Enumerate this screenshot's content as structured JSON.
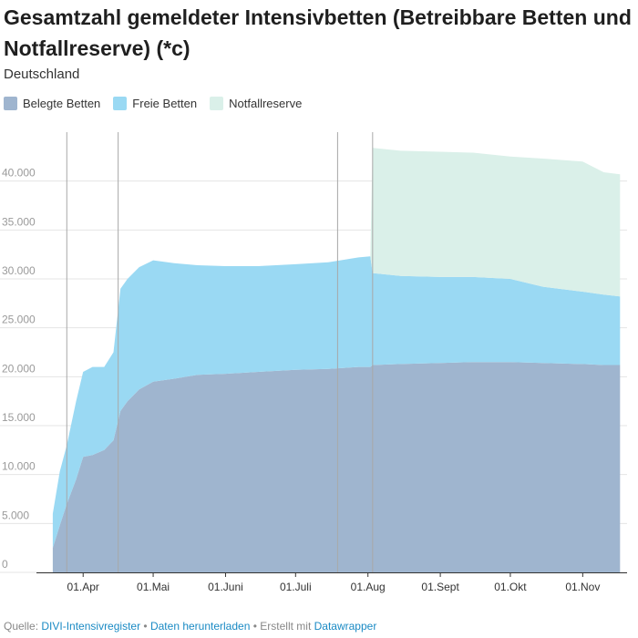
{
  "title": "Gesamtzahl gemeldeter Intensivbetten (Betreibbare Betten und Notfallreserve) (*c)",
  "subtitle": "Deutschland",
  "legend": [
    {
      "label": "Belegte Betten",
      "color": "#9fb5cf"
    },
    {
      "label": "Freie Betten",
      "color": "#9ad9f3"
    },
    {
      "label": "Notfallreserve",
      "color": "#daf0e9"
    }
  ],
  "footer": {
    "prefix": "Quelle:",
    "source": "DIVI-Intensivregister",
    "sep1": "•",
    "download": "Daten herunterladen",
    "sep2": "• Erstellt mit",
    "tool": "Datawrapper"
  },
  "chart_data": {
    "type": "area",
    "stacked": true,
    "x_is_date": true,
    "ylim": [
      0,
      45000
    ],
    "yticks": [
      0,
      5000,
      10000,
      15000,
      20000,
      25000,
      30000,
      35000,
      40000
    ],
    "ytick_labels": [
      "0",
      "5.000",
      "10.000",
      "15.000",
      "20.000",
      "25.000",
      "30.000",
      "35.000",
      "40.000"
    ],
    "xticks": [
      {
        "date": "2020-04-01",
        "label": "01.Apr"
      },
      {
        "date": "2020-05-01",
        "label": "01.Mai"
      },
      {
        "date": "2020-06-01",
        "label": "01.Juni"
      },
      {
        "date": "2020-07-01",
        "label": "01.Juli"
      },
      {
        "date": "2020-08-01",
        "label": "01.Aug"
      },
      {
        "date": "2020-09-01",
        "label": "01.Sept"
      },
      {
        "date": "2020-10-01",
        "label": "01.Okt"
      },
      {
        "date": "2020-11-01",
        "label": "01.Nov"
      }
    ],
    "x_range": [
      "2020-03-12",
      "2020-11-20"
    ],
    "highlight_dates": [
      "2020-03-25",
      "2020-04-16",
      "2020-07-19",
      "2020-08-03"
    ],
    "x": [
      "2020-03-19",
      "2020-03-22",
      "2020-03-25",
      "2020-03-29",
      "2020-04-01",
      "2020-04-05",
      "2020-04-10",
      "2020-04-14",
      "2020-04-17",
      "2020-04-20",
      "2020-04-25",
      "2020-05-01",
      "2020-05-10",
      "2020-05-20",
      "2020-06-01",
      "2020-06-15",
      "2020-07-01",
      "2020-07-15",
      "2020-07-28",
      "2020-08-02",
      "2020-08-03",
      "2020-08-15",
      "2020-09-01",
      "2020-09-15",
      "2020-10-01",
      "2020-10-15",
      "2020-11-01",
      "2020-11-10",
      "2020-11-17"
    ],
    "series": [
      {
        "name": "Belegte Betten",
        "color": "#9fb5cf",
        "values": [
          2500,
          4800,
          7000,
          9500,
          11800,
          12000,
          12500,
          13500,
          16500,
          17500,
          18700,
          19500,
          19800,
          20200,
          20300,
          20500,
          20700,
          20800,
          21000,
          21000,
          21200,
          21300,
          21400,
          21500,
          21500,
          21400,
          21300,
          21200,
          21200
        ]
      },
      {
        "name": "Freie Betten",
        "color": "#9ad9f3",
        "values": [
          3500,
          5500,
          6000,
          8000,
          8700,
          9000,
          8500,
          9000,
          12500,
          12500,
          12500,
          12400,
          11800,
          11200,
          11000,
          10800,
          10800,
          10900,
          11200,
          11300,
          9400,
          9000,
          8800,
          8700,
          8500,
          7800,
          7400,
          7200,
          7000
        ]
      },
      {
        "name": "Notfallreserve",
        "color": "#daf0e9",
        "values": [
          0,
          0,
          0,
          0,
          0,
          0,
          0,
          0,
          0,
          0,
          0,
          0,
          0,
          0,
          0,
          0,
          0,
          0,
          0,
          0,
          12800,
          12800,
          12800,
          12700,
          12500,
          13100,
          13300,
          12500,
          12500
        ]
      }
    ]
  }
}
